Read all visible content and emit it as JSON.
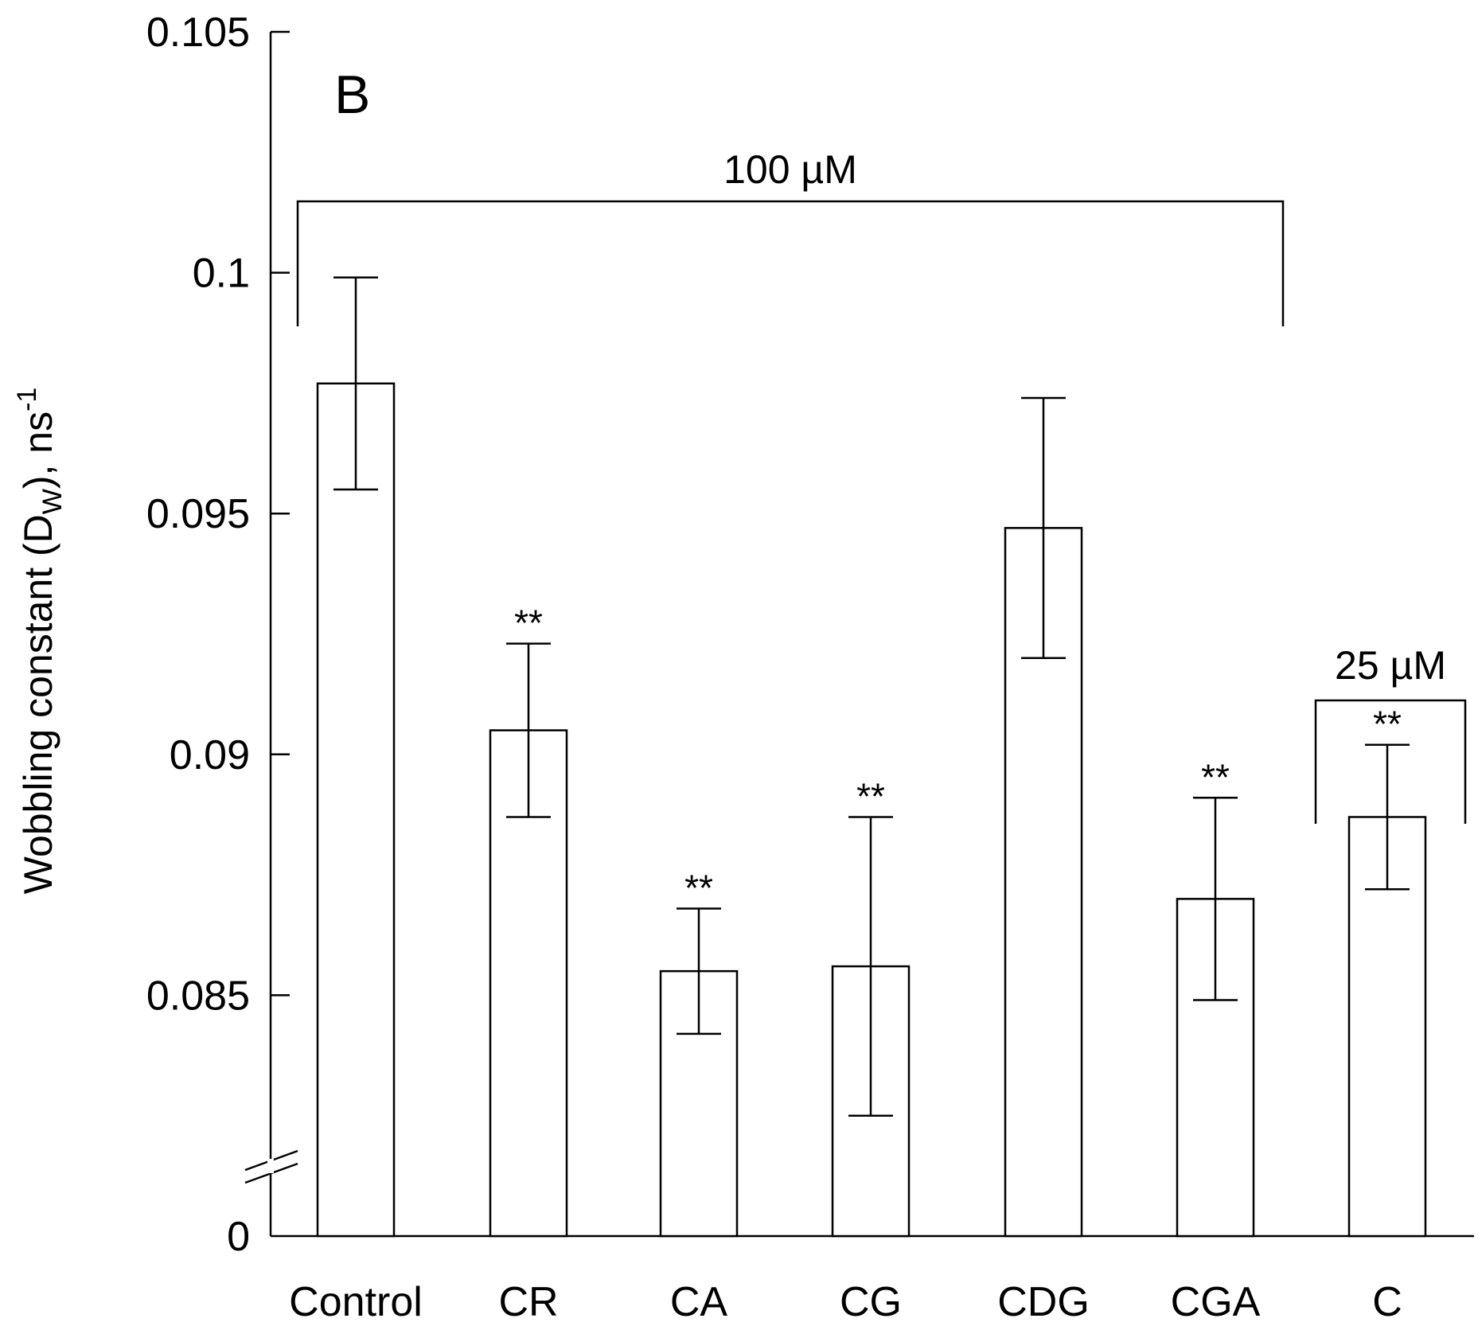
{
  "chart_data": {
    "type": "bar",
    "panel_label": "B",
    "ylabel_main": "Wobbling constant (D",
    "ylabel_sub": "W",
    "ylabel_end": "), ns",
    "ylabel_sup": "-1",
    "categories": [
      "Control",
      "CR",
      "CA",
      "CG",
      "CDG",
      "CGA",
      "C"
    ],
    "values": [
      0.0977,
      0.0905,
      0.0855,
      0.0856,
      0.0947,
      0.087,
      0.0887
    ],
    "errors": [
      0.0022,
      0.0018,
      0.0013,
      0.0031,
      0.0027,
      0.0021,
      0.0015
    ],
    "significance": [
      "",
      "**",
      "**",
      "**",
      "",
      "**",
      "**"
    ],
    "y_axis": {
      "broken": true,
      "lower_tick": 0,
      "ylim": [
        0.08,
        0.105
      ],
      "tick_values": [
        0.085,
        0.09,
        0.095,
        0.1,
        0.105
      ],
      "tick_labels": [
        "0",
        "0.085",
        "0.09",
        "0.095",
        "0.1",
        "0.105"
      ]
    },
    "brackets": [
      {
        "label": "100 µM",
        "from_category": 0,
        "to_category": 5
      },
      {
        "label": "25 µM",
        "from_category": 6,
        "to_category": 6
      }
    ],
    "colors": {
      "bar_fill": "#ffffff",
      "stroke": "#000000"
    }
  }
}
